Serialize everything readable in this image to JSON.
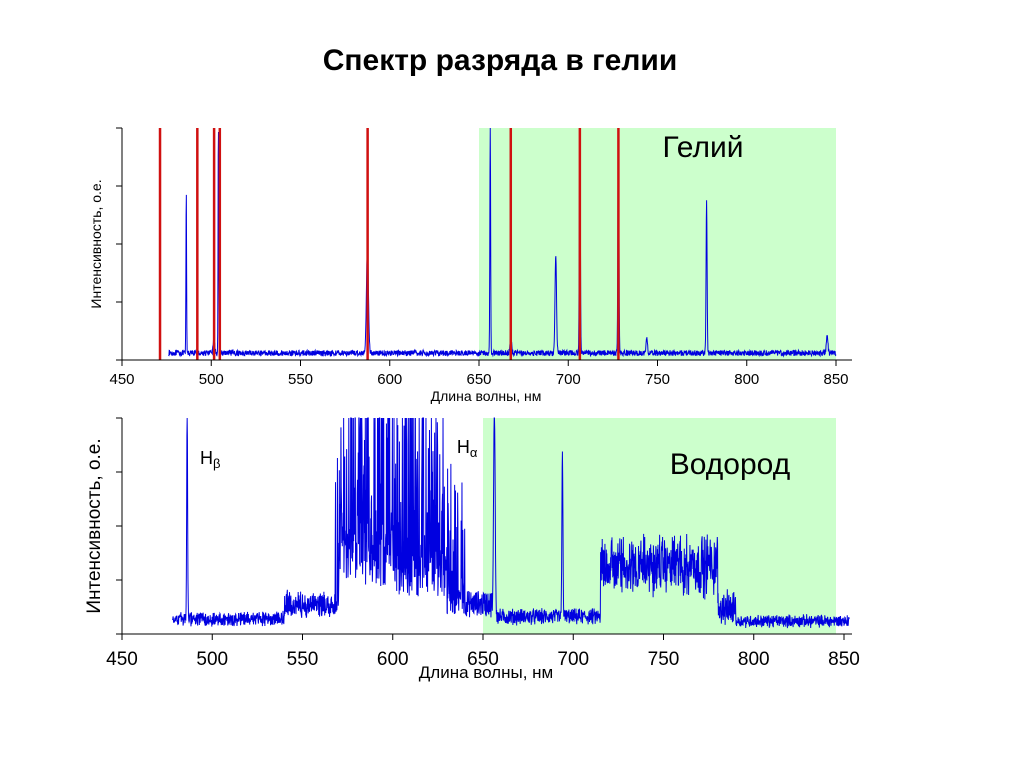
{
  "slide_title": "Спектр разряда в гелии",
  "colors": {
    "spectrum": "#0000e0",
    "reference_lines": "#d01010",
    "highlight": "#ccffcc"
  },
  "chart_data": [
    {
      "type": "line",
      "label": "Гелий",
      "xlabel": "Длина волны, нм",
      "ylabel": "Интенсивность, о.е.",
      "xlim": [
        450,
        850
      ],
      "xticks": [
        "450",
        "500",
        "550",
        "600",
        "650",
        "700",
        "750",
        "800",
        "850"
      ],
      "ylim": [
        0,
        1
      ],
      "y_tick_count": 5,
      "highlight_range": [
        650,
        850
      ],
      "grid": false,
      "series": [
        {
          "color": "#0000e0",
          "baseline": 0.03,
          "noise": 0.012,
          "start": 476,
          "end": 850,
          "peaks": [
            {
              "x": 486,
              "y": 0.7,
              "w": 0.25
            },
            {
              "x": 501.5,
              "y": 0.07,
              "w": 0.6
            },
            {
              "x": 504,
              "y": 1.0,
              "w": 0.25
            },
            {
              "x": 587.5,
              "y": 0.45,
              "w": 0.8
            },
            {
              "x": 656.3,
              "y": 1.0,
              "w": 0.3
            },
            {
              "x": 667.8,
              "y": 0.08,
              "w": 0.6
            },
            {
              "x": 693,
              "y": 0.42,
              "w": 0.6
            },
            {
              "x": 706.5,
              "y": 1.0,
              "w": 0.4
            },
            {
              "x": 728.1,
              "y": 1.0,
              "w": 0.4
            },
            {
              "x": 744,
              "y": 0.07,
              "w": 0.5
            },
            {
              "x": 777.5,
              "y": 0.66,
              "w": 0.4
            },
            {
              "x": 845,
              "y": 0.08,
              "w": 0.6
            }
          ]
        }
      ],
      "reference_lines": [
        471.3,
        492.2,
        501.6,
        504.8,
        587.6,
        667.8,
        706.5,
        728.1
      ]
    },
    {
      "type": "line",
      "label": "Водород",
      "xlabel": "Длина волны, нм",
      "ylabel": "Интенсивность, о.е.",
      "xlim": [
        450,
        850
      ],
      "xticks": [
        "450",
        "500",
        "550",
        "600",
        "650",
        "700",
        "750",
        "800",
        "850"
      ],
      "ylim": [
        0,
        1
      ],
      "y_tick_count": 5,
      "highlight_range": [
        650,
        850
      ],
      "grid": false,
      "annotations": [
        {
          "text": "H",
          "sub": "β",
          "x": 486
        },
        {
          "text": "H",
          "sub": "α",
          "x": 656
        }
      ],
      "series": [
        {
          "color": "#0000e0",
          "start": 478,
          "end": 853,
          "peaks": [
            {
              "x": 486.1,
              "y": 1.0,
              "w": 0.35
            },
            {
              "x": 656.3,
              "y": 1.0,
              "w": 0.6
            },
            {
              "x": 694,
              "y": 0.78,
              "w": 0.4
            }
          ],
          "bands": [
            {
              "from": 478,
              "to": 540,
              "level": 0.07
            },
            {
              "from": 540,
              "to": 570,
              "level": 0.14
            },
            {
              "from": 570,
              "to": 600,
              "level": 0.35
            },
            {
              "from": 600,
              "to": 630,
              "level": 0.28
            },
            {
              "from": 630,
              "to": 655,
              "level": 0.14
            },
            {
              "from": 655,
              "to": 715,
              "level": 0.08
            },
            {
              "from": 715,
              "to": 780,
              "level": 0.26
            },
            {
              "from": 780,
              "to": 853,
              "level": 0.06
            }
          ]
        }
      ]
    }
  ]
}
